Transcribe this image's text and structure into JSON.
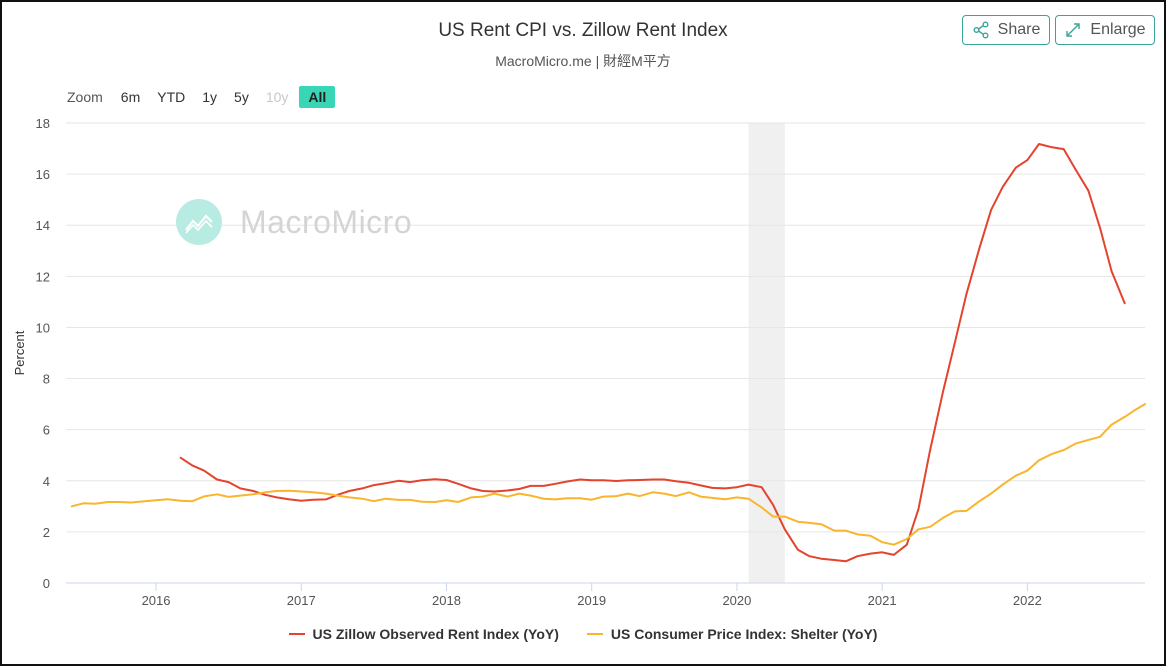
{
  "header": {
    "title": "US Rent CPI vs. Zillow Rent Index",
    "subtitle": "MacroMicro.me | 財經M平方"
  },
  "toolbar": {
    "share_label": "Share",
    "enlarge_label": "Enlarge",
    "icon_share": "share-icon",
    "icon_enlarge": "expand-icon"
  },
  "zoom": {
    "label": "Zoom",
    "options": [
      {
        "label": "6m",
        "state": "normal"
      },
      {
        "label": "YTD",
        "state": "normal"
      },
      {
        "label": "1y",
        "state": "normal"
      },
      {
        "label": "5y",
        "state": "normal"
      },
      {
        "label": "10y",
        "state": "disabled"
      },
      {
        "label": "All",
        "state": "active"
      }
    ]
  },
  "watermark": {
    "text": "MacroMicro"
  },
  "colors": {
    "zillow": "#e4432d",
    "cpi": "#f8b52d",
    "accent": "#39d6b5",
    "recession": "#f0f0f0",
    "grid": "#e6e6e6"
  },
  "chart_data": {
    "type": "line",
    "title": "US Rent CPI vs. Zillow Rent Index",
    "subtitle": "MacroMicro.me | 財經M平方",
    "ylabel": "Percent",
    "ylim": [
      0,
      18
    ],
    "yticks": [
      0,
      2,
      4,
      6,
      8,
      10,
      12,
      14,
      16,
      18
    ],
    "xlim": [
      2015.38,
      2022.81
    ],
    "xticks": [
      "2016",
      "2017",
      "2018",
      "2019",
      "2020",
      "2021",
      "2022"
    ],
    "grid": true,
    "legend_position": "bottom",
    "shaded_region": {
      "from": 2020.08,
      "to": 2020.33,
      "kind": "recession"
    },
    "series": [
      {
        "name": "US Zillow Observed Rent Index (YoY)",
        "color": "#e4432d",
        "x": [
          2016.17,
          2016.25,
          2016.33,
          2016.42,
          2016.5,
          2016.58,
          2016.67,
          2016.75,
          2016.83,
          2016.92,
          2017.0,
          2017.08,
          2017.17,
          2017.25,
          2017.33,
          2017.42,
          2017.5,
          2017.58,
          2017.67,
          2017.75,
          2017.83,
          2017.92,
          2018.0,
          2018.08,
          2018.17,
          2018.25,
          2018.33,
          2018.42,
          2018.5,
          2018.58,
          2018.67,
          2018.75,
          2018.83,
          2018.92,
          2019.0,
          2019.08,
          2019.17,
          2019.25,
          2019.33,
          2019.42,
          2019.5,
          2019.58,
          2019.67,
          2019.75,
          2019.83,
          2019.92,
          2020.0,
          2020.08,
          2020.17,
          2020.25,
          2020.33,
          2020.42,
          2020.5,
          2020.58,
          2020.67,
          2020.75,
          2020.83,
          2020.92,
          2021.0,
          2021.08,
          2021.17,
          2021.25,
          2021.33,
          2021.42,
          2021.5,
          2021.58,
          2021.67,
          2021.75,
          2021.83,
          2021.92,
          2022.0,
          2022.08,
          2022.17,
          2022.25,
          2022.33,
          2022.42,
          2022.5,
          2022.58,
          2022.67
        ],
        "values": [
          4.9,
          4.6,
          4.4,
          4.05,
          3.95,
          3.7,
          3.6,
          3.45,
          3.35,
          3.27,
          3.22,
          3.26,
          3.27,
          3.45,
          3.6,
          3.7,
          3.83,
          3.9,
          4.0,
          3.95,
          4.02,
          4.06,
          4.03,
          3.88,
          3.7,
          3.6,
          3.58,
          3.62,
          3.68,
          3.8,
          3.8,
          3.88,
          3.97,
          4.05,
          4.02,
          4.02,
          3.99,
          4.02,
          4.03,
          4.05,
          4.05,
          3.98,
          3.92,
          3.82,
          3.72,
          3.7,
          3.75,
          3.85,
          3.75,
          3.05,
          2.1,
          1.3,
          1.05,
          0.95,
          0.9,
          0.85,
          1.05,
          1.15,
          1.2,
          1.1,
          1.5,
          2.9,
          5.2,
          7.5,
          9.4,
          11.3,
          13.1,
          14.6,
          15.5,
          16.25,
          16.55,
          17.18,
          17.05,
          16.98,
          16.2,
          15.35,
          13.9,
          12.2,
          10.95
        ]
      },
      {
        "name": "US Consumer Price Index: Shelter (YoY)",
        "color": "#f8b52d",
        "x": [
          2015.42,
          2015.5,
          2015.58,
          2015.67,
          2015.75,
          2015.83,
          2015.92,
          2016.0,
          2016.08,
          2016.17,
          2016.25,
          2016.33,
          2016.42,
          2016.5,
          2016.58,
          2016.67,
          2016.75,
          2016.83,
          2016.92,
          2017.0,
          2017.08,
          2017.17,
          2017.25,
          2017.33,
          2017.42,
          2017.5,
          2017.58,
          2017.67,
          2017.75,
          2017.83,
          2017.92,
          2018.0,
          2018.08,
          2018.17,
          2018.25,
          2018.33,
          2018.42,
          2018.5,
          2018.58,
          2018.67,
          2018.75,
          2018.83,
          2018.92,
          2019.0,
          2019.08,
          2019.17,
          2019.25,
          2019.33,
          2019.42,
          2019.5,
          2019.58,
          2019.67,
          2019.75,
          2019.83,
          2019.92,
          2020.0,
          2020.08,
          2020.17,
          2020.25,
          2020.33,
          2020.42,
          2020.5,
          2020.58,
          2020.67,
          2020.75,
          2020.83,
          2020.92,
          2021.0,
          2021.08,
          2021.17,
          2021.25,
          2021.33,
          2021.42,
          2021.5,
          2021.58,
          2021.67,
          2021.75,
          2021.83,
          2021.92,
          2022.0,
          2022.08,
          2022.17,
          2022.25,
          2022.33,
          2022.42,
          2022.5,
          2022.58,
          2022.67,
          2022.75,
          2022.81
        ],
        "values": [
          3.0,
          3.12,
          3.1,
          3.17,
          3.17,
          3.15,
          3.2,
          3.24,
          3.28,
          3.22,
          3.2,
          3.39,
          3.47,
          3.37,
          3.42,
          3.47,
          3.55,
          3.6,
          3.61,
          3.58,
          3.55,
          3.5,
          3.42,
          3.35,
          3.3,
          3.2,
          3.3,
          3.25,
          3.25,
          3.18,
          3.17,
          3.24,
          3.17,
          3.35,
          3.38,
          3.5,
          3.38,
          3.5,
          3.42,
          3.3,
          3.27,
          3.32,
          3.32,
          3.26,
          3.38,
          3.4,
          3.5,
          3.4,
          3.55,
          3.5,
          3.4,
          3.55,
          3.38,
          3.33,
          3.28,
          3.35,
          3.3,
          2.96,
          2.6,
          2.6,
          2.4,
          2.35,
          2.3,
          2.05,
          2.05,
          1.9,
          1.85,
          1.6,
          1.5,
          1.72,
          2.1,
          2.2,
          2.55,
          2.8,
          2.82,
          3.2,
          3.5,
          3.85,
          4.2,
          4.4,
          4.8,
          5.05,
          5.2,
          5.45,
          5.6,
          5.72,
          6.2,
          6.5,
          6.8,
          7.0
        ]
      }
    ]
  }
}
